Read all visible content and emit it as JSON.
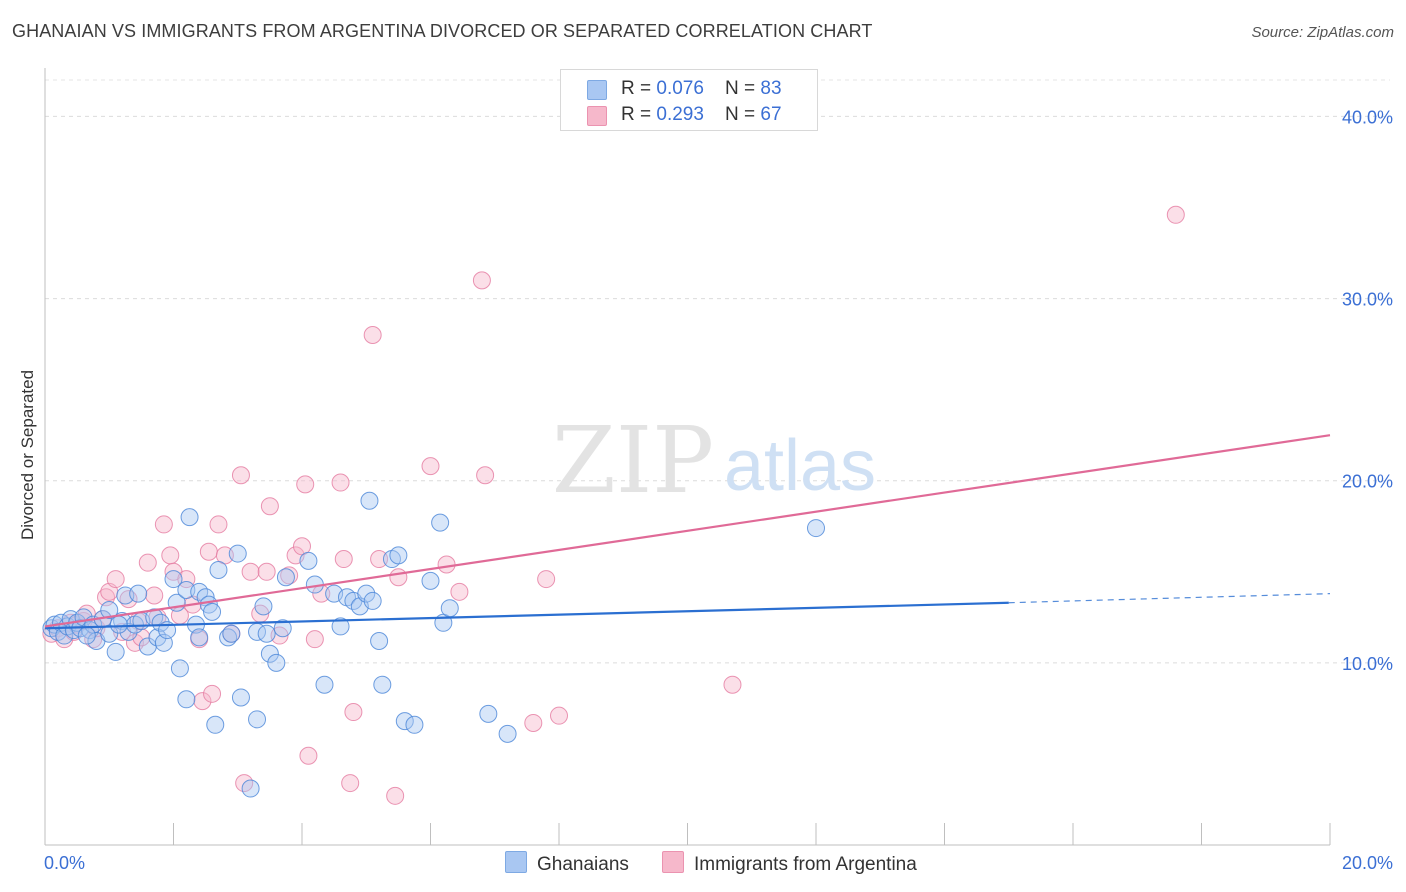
{
  "header": {
    "title": "GHANAIAN VS IMMIGRANTS FROM ARGENTINA DIVORCED OR SEPARATED CORRELATION CHART",
    "source": "Source: ZipAtlas.com"
  },
  "watermark": {
    "zip": "ZIP",
    "atlas": "atlas"
  },
  "legend": {
    "rows": [
      {
        "r_label": "R = ",
        "r_value": "0.076",
        "n_label": "N = ",
        "n_value": "83",
        "color": "#a9c7f2"
      },
      {
        "r_label": "R = ",
        "r_value": "0.293",
        "n_label": "N = ",
        "n_value": "67",
        "color": "#f6b8cb"
      }
    ]
  },
  "bottom_legend": {
    "items": [
      {
        "label": "Ghanaians",
        "color": "#a9c7f2"
      },
      {
        "label": "Immigrants from Argentina",
        "color": "#f6b8cb"
      }
    ]
  },
  "chart_data": {
    "type": "scatter",
    "title": "GHANAIAN VS IMMIGRANTS FROM ARGENTINA DIVORCED OR SEPARATED CORRELATION CHART",
    "xlabel": "",
    "ylabel": "Divorced or Separated",
    "xlim": [
      0,
      20
    ],
    "ylim": [
      0,
      42
    ],
    "x_tick_labels": [
      "0.0%",
      "20.0%"
    ],
    "y_tick_values": [
      10,
      20,
      30,
      40
    ],
    "y_tick_labels": [
      "10.0%",
      "20.0%",
      "30.0%",
      "40.0%"
    ],
    "grid": true,
    "legend_position": "top-center",
    "series": [
      {
        "name": "Ghanaians",
        "color": "#4a86d8",
        "fill": "#a9c7f2",
        "trend": {
          "x": [
            0,
            15
          ],
          "y": [
            11.9,
            13.3
          ],
          "dashed_extension_to": [
            20,
            13.8
          ],
          "color": "#2b6fd1"
        },
        "points": [
          [
            0.1,
            11.9
          ],
          [
            0.15,
            12.1
          ],
          [
            0.2,
            11.7
          ],
          [
            0.25,
            12.2
          ],
          [
            0.3,
            11.5
          ],
          [
            0.35,
            12.0
          ],
          [
            0.4,
            12.4
          ],
          [
            0.45,
            11.8
          ],
          [
            0.5,
            12.2
          ],
          [
            0.55,
            11.9
          ],
          [
            0.6,
            12.5
          ],
          [
            0.7,
            11.8
          ],
          [
            0.75,
            12.1
          ],
          [
            0.8,
            11.2
          ],
          [
            0.9,
            12.4
          ],
          [
            1.0,
            11.6
          ],
          [
            1.0,
            12.9
          ],
          [
            1.1,
            10.6
          ],
          [
            1.2,
            12.3
          ],
          [
            1.25,
            13.7
          ],
          [
            1.3,
            11.7
          ],
          [
            1.4,
            12.1
          ],
          [
            1.45,
            13.8
          ],
          [
            1.5,
            12.3
          ],
          [
            1.6,
            10.9
          ],
          [
            1.7,
            12.5
          ],
          [
            1.75,
            11.4
          ],
          [
            1.8,
            12.2
          ],
          [
            1.85,
            11.1
          ],
          [
            1.9,
            11.8
          ],
          [
            2.0,
            14.6
          ],
          [
            2.05,
            13.3
          ],
          [
            2.1,
            9.7
          ],
          [
            2.2,
            8.0
          ],
          [
            2.2,
            14.0
          ],
          [
            2.25,
            18.0
          ],
          [
            2.35,
            12.1
          ],
          [
            2.4,
            11.4
          ],
          [
            2.4,
            13.9
          ],
          [
            2.5,
            13.6
          ],
          [
            2.55,
            13.2
          ],
          [
            2.6,
            12.8
          ],
          [
            2.65,
            6.6
          ],
          [
            2.7,
            15.1
          ],
          [
            2.85,
            11.4
          ],
          [
            2.9,
            11.6
          ],
          [
            3.0,
            16.0
          ],
          [
            3.05,
            8.1
          ],
          [
            3.2,
            3.1
          ],
          [
            3.3,
            6.9
          ],
          [
            3.3,
            11.7
          ],
          [
            3.4,
            13.1
          ],
          [
            3.45,
            11.6
          ],
          [
            3.5,
            10.5
          ],
          [
            3.6,
            10.0
          ],
          [
            3.7,
            11.9
          ],
          [
            3.75,
            14.7
          ],
          [
            4.1,
            15.6
          ],
          [
            4.2,
            14.3
          ],
          [
            4.35,
            8.8
          ],
          [
            4.5,
            13.8
          ],
          [
            4.6,
            12.0
          ],
          [
            4.7,
            13.6
          ],
          [
            4.8,
            13.4
          ],
          [
            4.9,
            13.1
          ],
          [
            5.0,
            13.8
          ],
          [
            5.05,
            18.9
          ],
          [
            5.1,
            13.4
          ],
          [
            5.2,
            11.2
          ],
          [
            5.25,
            8.8
          ],
          [
            5.4,
            15.7
          ],
          [
            5.5,
            15.9
          ],
          [
            5.6,
            6.8
          ],
          [
            5.75,
            6.6
          ],
          [
            6.0,
            14.5
          ],
          [
            6.15,
            17.7
          ],
          [
            6.2,
            12.2
          ],
          [
            6.3,
            13.0
          ],
          [
            6.9,
            7.2
          ],
          [
            7.2,
            6.1
          ],
          [
            12.0,
            17.4
          ],
          [
            0.65,
            11.5
          ],
          [
            1.15,
            12.1
          ]
        ]
      },
      {
        "name": "Immigrants from Argentina",
        "color": "#e57aa0",
        "fill": "#f6b8cb",
        "trend": {
          "x": [
            0,
            20
          ],
          "y": [
            12.0,
            22.5
          ],
          "color": "#e06a97"
        },
        "points": [
          [
            0.1,
            11.6
          ],
          [
            0.2,
            11.9
          ],
          [
            0.3,
            11.3
          ],
          [
            0.4,
            12.2
          ],
          [
            0.45,
            11.7
          ],
          [
            0.5,
            12.1
          ],
          [
            0.6,
            12.3
          ],
          [
            0.65,
            12.7
          ],
          [
            0.75,
            11.3
          ],
          [
            0.8,
            11.9
          ],
          [
            0.9,
            12.4
          ],
          [
            0.95,
            13.6
          ],
          [
            1.0,
            13.9
          ],
          [
            1.1,
            14.6
          ],
          [
            1.2,
            11.7
          ],
          [
            1.3,
            13.5
          ],
          [
            1.4,
            11.1
          ],
          [
            1.45,
            12.3
          ],
          [
            1.5,
            11.4
          ],
          [
            1.6,
            15.5
          ],
          [
            1.7,
            13.7
          ],
          [
            1.75,
            12.5
          ],
          [
            1.85,
            17.6
          ],
          [
            1.95,
            15.9
          ],
          [
            2.0,
            15.0
          ],
          [
            2.1,
            12.6
          ],
          [
            2.2,
            14.6
          ],
          [
            2.3,
            13.2
          ],
          [
            2.4,
            11.3
          ],
          [
            2.45,
            7.9
          ],
          [
            2.55,
            16.1
          ],
          [
            2.6,
            8.3
          ],
          [
            2.7,
            17.6
          ],
          [
            2.8,
            15.9
          ],
          [
            2.9,
            11.6
          ],
          [
            3.05,
            20.3
          ],
          [
            3.1,
            3.4
          ],
          [
            3.2,
            15.0
          ],
          [
            3.35,
            12.7
          ],
          [
            3.45,
            15.0
          ],
          [
            3.5,
            18.6
          ],
          [
            3.65,
            11.5
          ],
          [
            3.8,
            14.8
          ],
          [
            3.9,
            15.9
          ],
          [
            4.0,
            16.4
          ],
          [
            4.05,
            19.8
          ],
          [
            4.1,
            4.9
          ],
          [
            4.2,
            11.3
          ],
          [
            4.3,
            13.8
          ],
          [
            4.6,
            19.9
          ],
          [
            4.65,
            15.7
          ],
          [
            4.75,
            3.4
          ],
          [
            4.8,
            7.3
          ],
          [
            5.1,
            28.0
          ],
          [
            5.2,
            15.7
          ],
          [
            5.45,
            2.7
          ],
          [
            5.5,
            14.7
          ],
          [
            6.0,
            20.8
          ],
          [
            6.25,
            15.4
          ],
          [
            6.45,
            13.9
          ],
          [
            6.8,
            31.0
          ],
          [
            6.85,
            20.3
          ],
          [
            7.6,
            6.7
          ],
          [
            7.8,
            14.6
          ],
          [
            8.0,
            7.1
          ],
          [
            10.7,
            8.8
          ],
          [
            17.6,
            34.6
          ]
        ]
      }
    ]
  }
}
